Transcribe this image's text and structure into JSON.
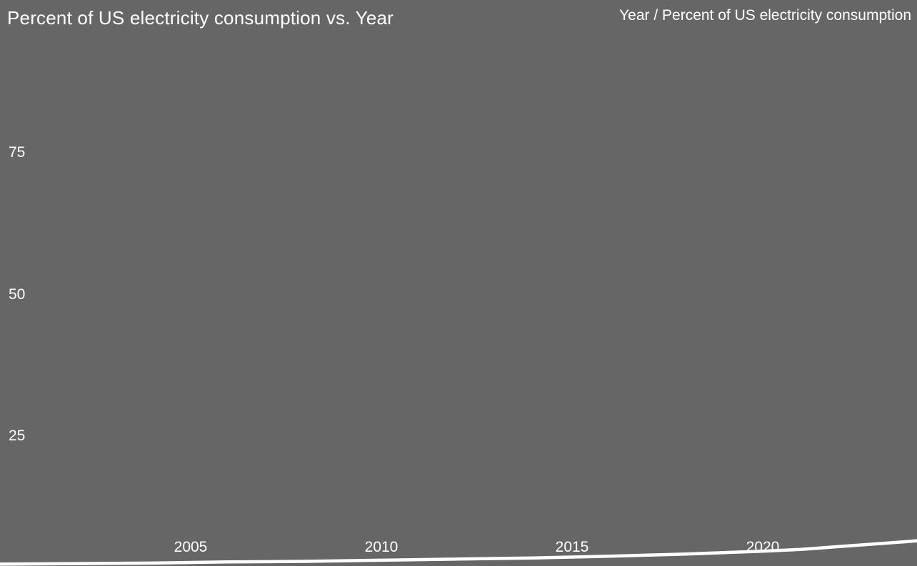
{
  "chart_data": {
    "type": "line",
    "title": "Percent of US electricity consumption vs. Year",
    "corner_label": "Year / Percent of US electricity consumption",
    "xlabel": "Year",
    "ylabel": "Percent of US electricity consumption",
    "xlim": [
      2000,
      2024.2
    ],
    "ylim": [
      0,
      100
    ],
    "grid": false,
    "legend": "none",
    "x": [
      2000,
      2002,
      2004,
      2006,
      2008,
      2010,
      2012,
      2014,
      2016,
      2018,
      2020,
      2021,
      2022,
      2023,
      2024,
      2024.2
    ],
    "values": [
      2.4,
      2.5,
      2.6,
      2.8,
      2.9,
      3.1,
      3.3,
      3.5,
      3.8,
      4.2,
      4.7,
      5.0,
      5.5,
      6.0,
      6.5,
      6.6
    ],
    "series_name": "Percent of US electricity consumption",
    "xtick_values": [
      2005,
      2010,
      2015,
      2020
    ],
    "xtick_labels": [
      "2005",
      "2010",
      "2015",
      "2020"
    ],
    "ytick_values": [
      75,
      50,
      25
    ],
    "ytick_labels": [
      "75",
      "50",
      "25"
    ],
    "colors": {
      "background": "#666666",
      "text": "#ffffff",
      "line": "#ffffff"
    }
  }
}
